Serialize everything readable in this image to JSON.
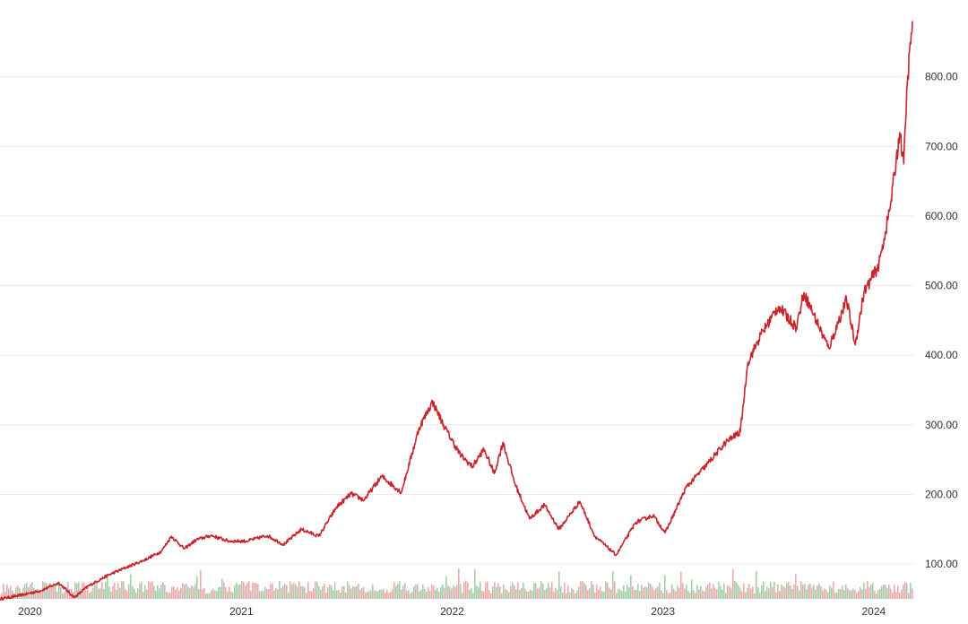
{
  "chart_data": {
    "type": "line",
    "title": "",
    "xlabel": "",
    "ylabel": "",
    "x_ticks": [
      "2020",
      "2021",
      "2022",
      "2023",
      "2024"
    ],
    "x_tick_dates": [
      "2020-01-01",
      "2021-01-01",
      "2022-01-01",
      "2023-01-01",
      "2024-01-01"
    ],
    "xlim": [
      "2019-11-10",
      "2024-03-08"
    ],
    "y_ticks": [
      "100.00",
      "200.00",
      "300.00",
      "400.00",
      "500.00",
      "600.00",
      "700.00",
      "800.00"
    ],
    "ylim": [
      50,
      900
    ],
    "grid": "horizontal",
    "y_axis_position": "right",
    "colors": {
      "line": "#c8252b",
      "volume_up": "#8fc79a",
      "volume_down": "#ef9aa3"
    },
    "series": [
      {
        "values": [
          {
            "x": "2019-11-10",
            "y": 50
          },
          {
            "x": "2019-12-15",
            "y": 55
          },
          {
            "x": "2020-01-20",
            "y": 62
          },
          {
            "x": "2020-02-20",
            "y": 73
          },
          {
            "x": "2020-03-18",
            "y": 52
          },
          {
            "x": "2020-04-10",
            "y": 68
          },
          {
            "x": "2020-05-15",
            "y": 84
          },
          {
            "x": "2020-06-15",
            "y": 95
          },
          {
            "x": "2020-07-15",
            "y": 105
          },
          {
            "x": "2020-08-15",
            "y": 118
          },
          {
            "x": "2020-09-02",
            "y": 140
          },
          {
            "x": "2020-09-24",
            "y": 122
          },
          {
            "x": "2020-10-15",
            "y": 135
          },
          {
            "x": "2020-11-10",
            "y": 141
          },
          {
            "x": "2020-12-10",
            "y": 133
          },
          {
            "x": "2021-01-10",
            "y": 133
          },
          {
            "x": "2021-02-15",
            "y": 141
          },
          {
            "x": "2021-03-15",
            "y": 128
          },
          {
            "x": "2021-04-15",
            "y": 150
          },
          {
            "x": "2021-05-15",
            "y": 140
          },
          {
            "x": "2021-06-15",
            "y": 182
          },
          {
            "x": "2021-07-10",
            "y": 201
          },
          {
            "x": "2021-08-01",
            "y": 192
          },
          {
            "x": "2021-09-01",
            "y": 226
          },
          {
            "x": "2021-10-05",
            "y": 203
          },
          {
            "x": "2021-11-05",
            "y": 296
          },
          {
            "x": "2021-11-28",
            "y": 333
          },
          {
            "x": "2021-12-20",
            "y": 295
          },
          {
            "x": "2022-01-15",
            "y": 257
          },
          {
            "x": "2022-02-05",
            "y": 240
          },
          {
            "x": "2022-02-25",
            "y": 265
          },
          {
            "x": "2022-03-15",
            "y": 230
          },
          {
            "x": "2022-03-30",
            "y": 275
          },
          {
            "x": "2022-04-20",
            "y": 215
          },
          {
            "x": "2022-05-15",
            "y": 165
          },
          {
            "x": "2022-06-10",
            "y": 185
          },
          {
            "x": "2022-07-05",
            "y": 150
          },
          {
            "x": "2022-08-10",
            "y": 190
          },
          {
            "x": "2022-09-05",
            "y": 140
          },
          {
            "x": "2022-10-12",
            "y": 113
          },
          {
            "x": "2022-11-15",
            "y": 160
          },
          {
            "x": "2022-12-15",
            "y": 170
          },
          {
            "x": "2023-01-05",
            "y": 145
          },
          {
            "x": "2023-02-10",
            "y": 210
          },
          {
            "x": "2023-03-15",
            "y": 240
          },
          {
            "x": "2023-04-20",
            "y": 275
          },
          {
            "x": "2023-05-15",
            "y": 290
          },
          {
            "x": "2023-05-28",
            "y": 390
          },
          {
            "x": "2023-06-20",
            "y": 430
          },
          {
            "x": "2023-07-20",
            "y": 470
          },
          {
            "x": "2023-08-20",
            "y": 440
          },
          {
            "x": "2023-09-02",
            "y": 490
          },
          {
            "x": "2023-10-15",
            "y": 410
          },
          {
            "x": "2023-11-15",
            "y": 480
          },
          {
            "x": "2023-11-30",
            "y": 415
          },
          {
            "x": "2023-12-15",
            "y": 490
          },
          {
            "x": "2024-01-10",
            "y": 530
          },
          {
            "x": "2024-01-30",
            "y": 615
          },
          {
            "x": "2024-02-15",
            "y": 720
          },
          {
            "x": "2024-02-22",
            "y": 675
          },
          {
            "x": "2024-02-28",
            "y": 790
          },
          {
            "x": "2024-03-08",
            "y": 880
          }
        ]
      }
    ]
  }
}
